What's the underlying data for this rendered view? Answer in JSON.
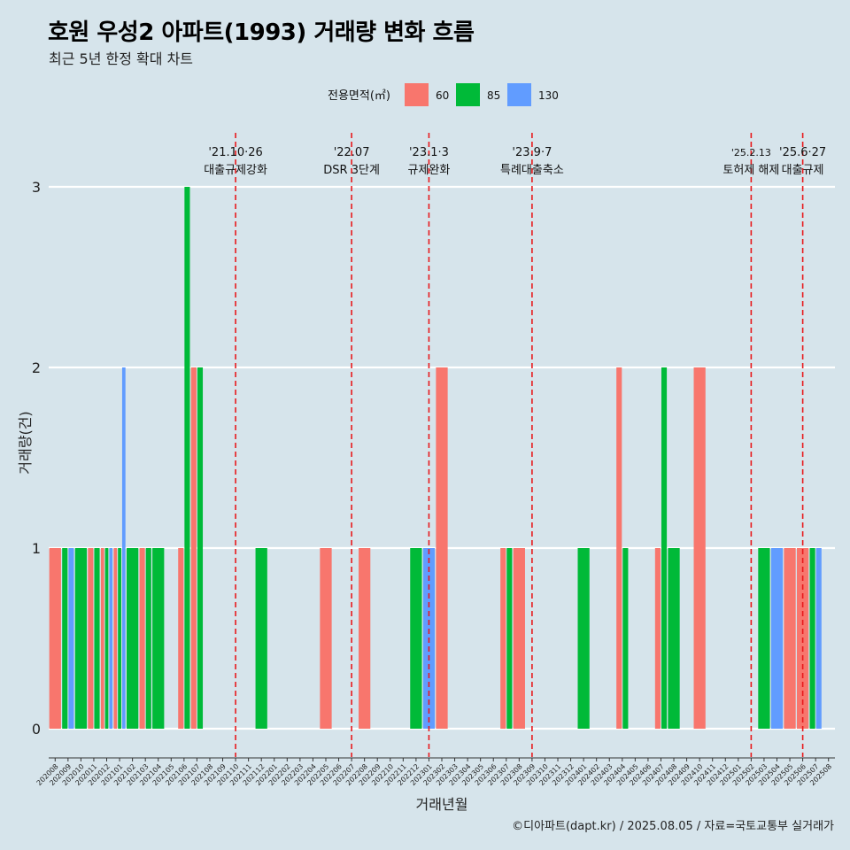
{
  "title": "호원 우성2 아파트(1993) 거래량 변화 흐름",
  "subtitle": "최근 5년 한정 확대 차트",
  "caption": "©디아파트(dapt.kr) / 2025.08.05 / 자료=국토교통부 실거래가",
  "colors": {
    "background": "#d6e4eb",
    "grid": "#ffffff",
    "event_line": "#e8191c",
    "series_60": "#f8766d",
    "series_85": "#00ba38",
    "series_130": "#619cff"
  },
  "chart_data": {
    "type": "bar",
    "title": "호원 우성2 아파트(1993) 거래량 변화 흐름",
    "subtitle": "최근 5년 한정 확대 차트",
    "xlabel": "거래년월",
    "ylabel": "거래량(건)",
    "ylim": [
      0,
      3
    ],
    "y_ticks": [
      "0",
      "1",
      "2",
      "3"
    ],
    "grid": "horizontal",
    "legend": {
      "title": "전용면적(㎡)",
      "position": "top",
      "entries": [
        "60",
        "85",
        "130"
      ]
    },
    "categories": [
      "202008",
      "202009",
      "202010",
      "202011",
      "202012",
      "202101",
      "202102",
      "202103",
      "202104",
      "202105",
      "202106",
      "202107",
      "202108",
      "202109",
      "202110",
      "202111",
      "202112",
      "202201",
      "202202",
      "202203",
      "202204",
      "202205",
      "202206",
      "202207",
      "202208",
      "202209",
      "202210",
      "202211",
      "202212",
      "202301",
      "202302",
      "202303",
      "202304",
      "202305",
      "202306",
      "202307",
      "202308",
      "202309",
      "202310",
      "202311",
      "202312",
      "202401",
      "202402",
      "202403",
      "202404",
      "202405",
      "202406",
      "202407",
      "202408",
      "202409",
      "202410",
      "202411",
      "202412",
      "202501",
      "202502",
      "202503",
      "202504",
      "202505",
      "202506",
      "202507",
      "202508"
    ],
    "series": [
      {
        "name": "60",
        "values": [
          1,
          0,
          0,
          1,
          1,
          1,
          0,
          1,
          0,
          0,
          1,
          2,
          0,
          0,
          0,
          0,
          0,
          0,
          0,
          0,
          0,
          1,
          0,
          0,
          1,
          0,
          0,
          0,
          0,
          0,
          2,
          0,
          0,
          0,
          0,
          1,
          1,
          0,
          0,
          0,
          0,
          0,
          0,
          0,
          2,
          0,
          0,
          1,
          0,
          0,
          2,
          0,
          0,
          0,
          0,
          0,
          0,
          1,
          1,
          0,
          0
        ]
      },
      {
        "name": "85",
        "values": [
          0,
          1,
          1,
          1,
          1,
          1,
          1,
          1,
          1,
          0,
          3,
          2,
          0,
          0,
          0,
          0,
          1,
          0,
          0,
          0,
          0,
          0,
          0,
          0,
          0,
          0,
          0,
          0,
          1,
          0,
          0,
          0,
          0,
          0,
          0,
          1,
          0,
          0,
          0,
          0,
          0,
          1,
          0,
          0,
          1,
          0,
          0,
          2,
          1,
          0,
          0,
          0,
          0,
          0,
          0,
          1,
          0,
          0,
          0,
          1,
          0
        ]
      },
      {
        "name": "130",
        "values": [
          0,
          1,
          0,
          0,
          1,
          2,
          0,
          0,
          0,
          0,
          0,
          0,
          0,
          0,
          0,
          0,
          0,
          0,
          0,
          0,
          0,
          0,
          0,
          0,
          0,
          0,
          0,
          0,
          0,
          1,
          0,
          0,
          0,
          0,
          0,
          0,
          0,
          0,
          0,
          0,
          0,
          0,
          0,
          0,
          0,
          0,
          0,
          0,
          0,
          0,
          0,
          0,
          0,
          0,
          0,
          0,
          1,
          0,
          0,
          1,
          0
        ]
      }
    ],
    "annotations": [
      {
        "x": "202110",
        "date": "'21.10·26",
        "label": "대출규제강화"
      },
      {
        "x": "202207",
        "date": "'22.07",
        "label": "DSR 3단계"
      },
      {
        "x": "202301",
        "date": "'23.1·3",
        "label": "규제완화"
      },
      {
        "x": "202309",
        "date": "'23.9·7",
        "label": "특례대출축소"
      },
      {
        "x": "202502",
        "date": "'25.2.13",
        "label": "토허제 해제"
      },
      {
        "x": "202506",
        "date": "'25.6·27",
        "label": "대출규제"
      }
    ]
  }
}
